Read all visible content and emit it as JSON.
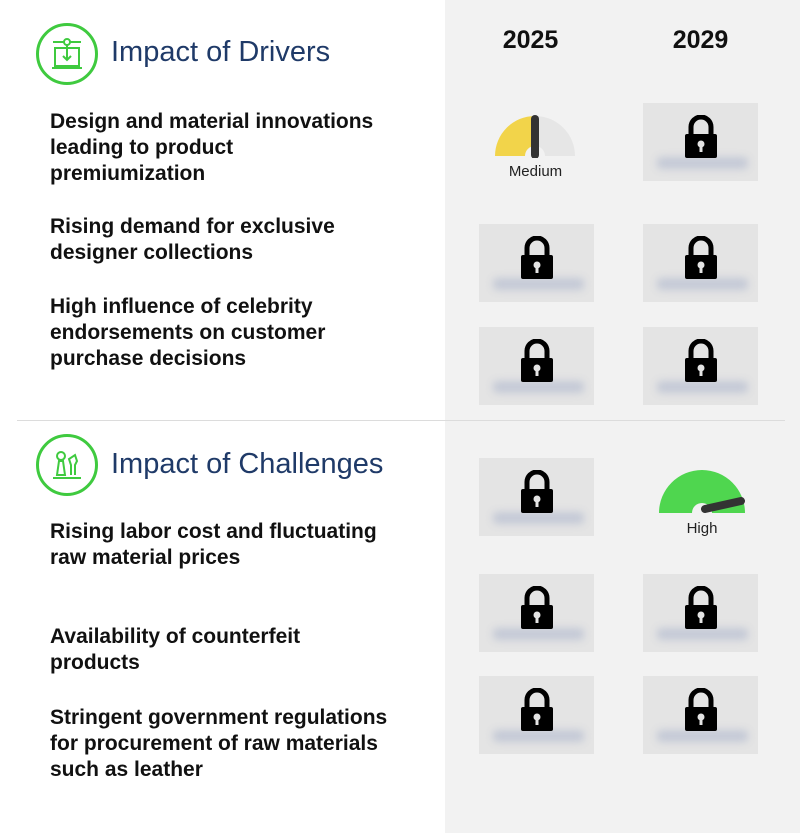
{
  "years": [
    "2025",
    "2029"
  ],
  "drivers": {
    "title": "Impact of Drivers",
    "icon": "innovation-icon",
    "items": [
      {
        "text": "Design and material innovations leading to product premiumization",
        "y2025": {
          "locked": false,
          "level": "Medium"
        },
        "y2029": {
          "locked": true
        }
      },
      {
        "text": "Rising demand for exclusive designer collections",
        "y2025": {
          "locked": true
        },
        "y2029": {
          "locked": true
        }
      },
      {
        "text": "High influence of celebrity endorsements on customer purchase decisions",
        "y2025": {
          "locked": true
        },
        "y2029": {
          "locked": true
        }
      }
    ]
  },
  "challenges": {
    "title": "Impact of Challenges",
    "icon": "chess-strategy-icon",
    "items": [
      {
        "text": "Rising labor cost and fluctuating raw material prices",
        "y2025": {
          "locked": true
        },
        "y2029": {
          "locked": false,
          "level": "High"
        }
      },
      {
        "text": "Availability of counterfeit products",
        "y2025": {
          "locked": true
        },
        "y2029": {
          "locked": true
        }
      },
      {
        "text": "Stringent government regulations for procurement of raw materials such as leather",
        "y2025": {
          "locked": true
        },
        "y2029": {
          "locked": true
        }
      }
    ]
  },
  "colors": {
    "accent_green": "#3fca3f",
    "title_blue": "#1f3a68",
    "medium_yellow": "#f2d44a",
    "high_green": "#4fd64f",
    "gauge_grey": "#e6e6e6",
    "needle": "#333333"
  }
}
